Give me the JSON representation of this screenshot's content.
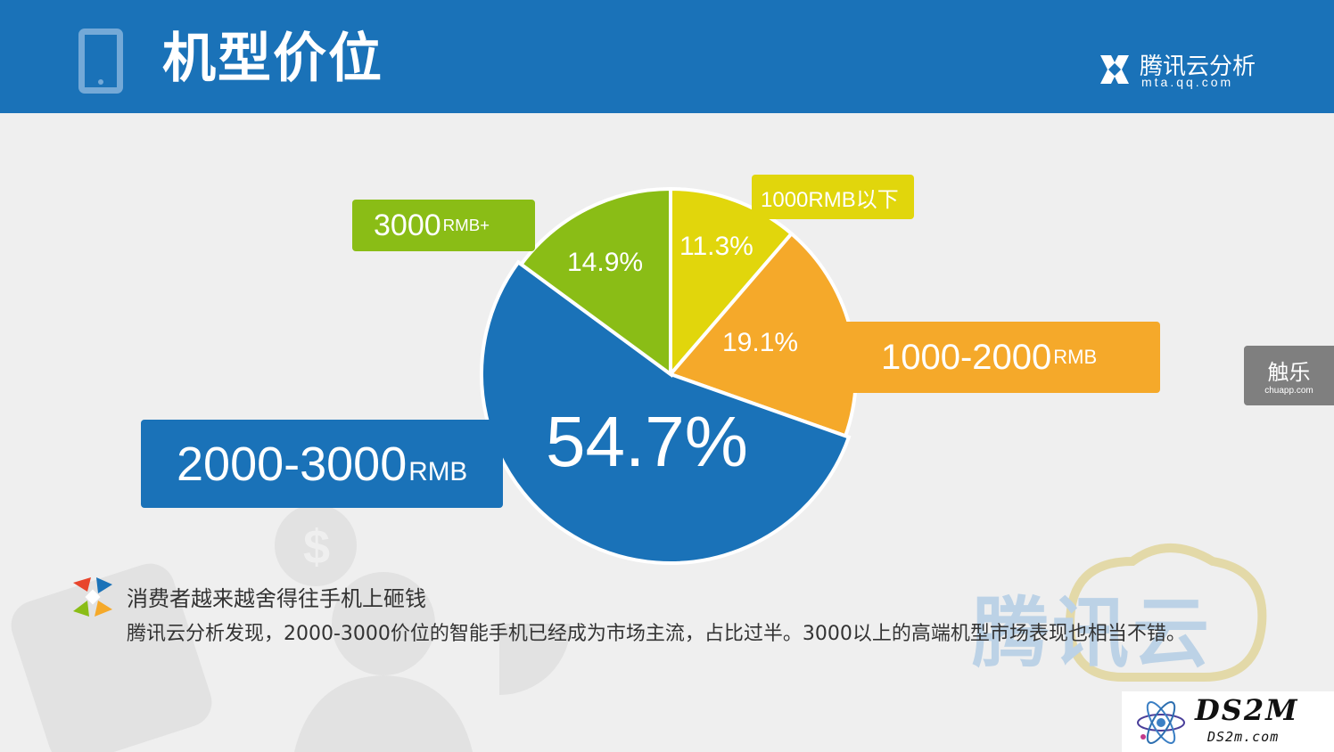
{
  "header": {
    "title": "机型价位",
    "brand_name": "腾讯云分析",
    "brand_url": "mta.qq.com",
    "icon": "phone-icon",
    "background_color": "#1a72b8"
  },
  "chart_data": {
    "type": "pie",
    "slices": [
      {
        "label_main": "1000RMB以下",
        "label_unit": "",
        "value": 11.3,
        "display": "11.3%",
        "color": "#e1d60c"
      },
      {
        "label_main": "1000-2000",
        "label_unit": "RMB",
        "value": 19.1,
        "display": "19.1%",
        "color": "#f5a92a"
      },
      {
        "label_main": "2000-3000",
        "label_unit": "RMB",
        "value": 54.7,
        "display": "54.7%",
        "color": "#1a72b8"
      },
      {
        "label_main": "3000",
        "label_unit": "RMB+",
        "value": 14.9,
        "display": "14.9%",
        "color": "#8abd16"
      }
    ]
  },
  "side_tab": {
    "title": "触乐",
    "subtitle": "chuapp.com"
  },
  "caption": {
    "title": "消费者越来越舍得往手机上砸钱",
    "body": "腾讯云分析发现，2000-3000价位的智能手机已经成为市场主流，占比过半。3000以上的高端机型市场表现也相当不错。"
  },
  "watermark": {
    "text": "腾讯云"
  },
  "footer_logo": {
    "name": "DS2M",
    "url": "DS2m.com"
  }
}
